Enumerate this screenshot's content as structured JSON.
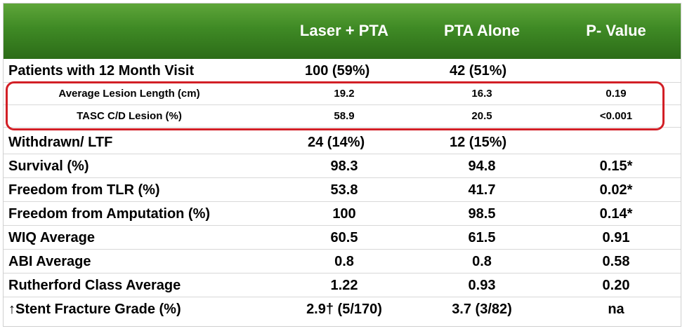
{
  "header": {
    "col1": "Laser + PTA",
    "col2": "PTA Alone",
    "col3": "P- Value"
  },
  "rows": [
    {
      "label": "Patients with 12 Month Visit",
      "laser": "100 (59%)",
      "pta": "42 (51%)",
      "p": ""
    },
    {
      "label": "Average  Lesion  Length  (cm)",
      "laser": "19.2",
      "pta": "16.3",
      "p": "0.19"
    },
    {
      "label": "TASC  C/D  Lesion  (%)",
      "laser": "58.9",
      "pta": "20.5",
      "p": "<0.001"
    },
    {
      "label": "Withdrawn/ LTF",
      "laser": "24 (14%)",
      "pta": "12 (15%)",
      "p": ""
    },
    {
      "label": "Survival (%)",
      "laser": "98.3",
      "pta": "94.8",
      "p": "0.15*"
    },
    {
      "label": "Freedom from TLR (%)",
      "laser": "53.8",
      "pta": "41.7",
      "p": "0.02*"
    },
    {
      "label": "Freedom from Amputation (%)",
      "laser": "100",
      "pta": "98.5",
      "p": "0.14*"
    },
    {
      "label": "WIQ Average",
      "laser": "60.5",
      "pta": "61.5",
      "p": "0.91"
    },
    {
      "label": "ABI Average",
      "laser": "0.8",
      "pta": "0.8",
      "p": "0.58"
    },
    {
      "label": "Rutherford Class Average",
      "laser": "1.22",
      "pta": "0.93",
      "p": "0.20"
    },
    {
      "label": "↑Stent Fracture Grade (%)",
      "laser": "2.9† (5/170)",
      "pta": "3.7 (3/82)",
      "p": "na"
    }
  ],
  "colors": {
    "header_green": "#3f8a25",
    "highlight_red": "#d21f26"
  }
}
